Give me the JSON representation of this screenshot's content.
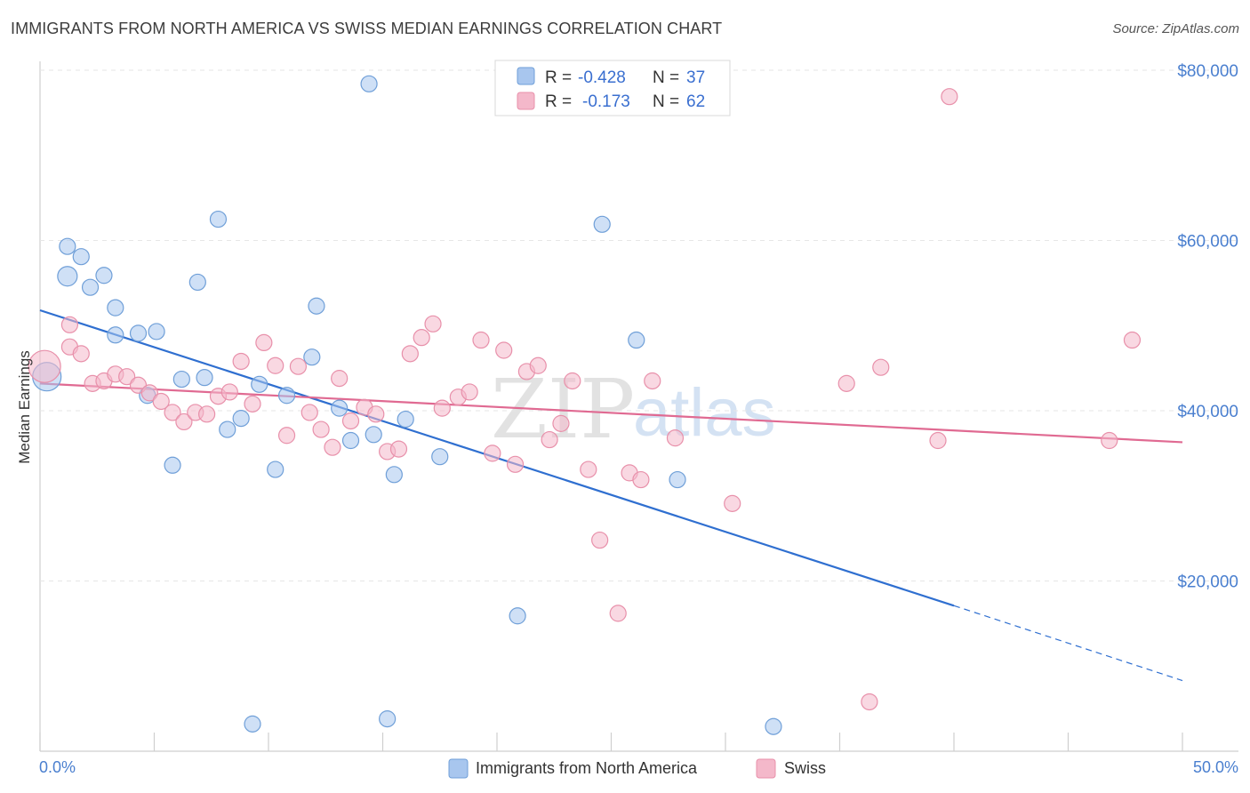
{
  "header": {
    "title": "IMMIGRANTS FROM NORTH AMERICA VS SWISS MEDIAN EARNINGS CORRELATION CHART",
    "source": "Source: ZipAtlas.com"
  },
  "watermark": {
    "zip": "ZIP",
    "atlas": "atlas"
  },
  "legend": {
    "r_label": "R =",
    "n_label": "N =",
    "rows": [
      {
        "r": "-0.428",
        "n": "37",
        "color": "#a8c6ee"
      },
      {
        "r": "-0.173",
        "n": "62",
        "color": "#f4b8ca"
      }
    ]
  },
  "bottom_legend": {
    "items": [
      {
        "label": "Immigrants from North America",
        "color": "#a8c6ee"
      },
      {
        "label": "Swiss",
        "color": "#f4b8ca"
      }
    ]
  },
  "chart_data": {
    "type": "scatter",
    "title": "IMMIGRANTS FROM NORTH AMERICA VS SWISS MEDIAN EARNINGS CORRELATION CHART",
    "xlabel": "",
    "ylabel": "Median Earnings",
    "xlim": [
      0,
      50
    ],
    "ylim": [
      0,
      80000
    ],
    "x_tick_labels": [
      "0.0%",
      "50.0%"
    ],
    "y_ticks": [
      20000,
      40000,
      60000,
      80000
    ],
    "y_tick_labels": [
      "$20,000",
      "$40,000",
      "$60,000",
      "$80,000"
    ],
    "grid": true,
    "series": [
      {
        "name": "Immigrants from North America",
        "color": "#a8c6ee",
        "stroke": "#6f9fd8",
        "trend_color": "#2f6fd0",
        "trend": {
          "x0": 0,
          "y0": 51800,
          "x1": 40,
          "y1": 17100,
          "dash_x1": 50,
          "dash_y1": 8300
        },
        "points": [
          [
            0.3,
            44000,
            16
          ],
          [
            1.2,
            55800,
            11
          ],
          [
            1.2,
            59300,
            9
          ],
          [
            1.8,
            58100,
            9
          ],
          [
            2.2,
            54500,
            9
          ],
          [
            2.8,
            55900,
            9
          ],
          [
            3.3,
            52100,
            9
          ],
          [
            3.3,
            48900,
            9
          ],
          [
            4.3,
            49100,
            9
          ],
          [
            5.1,
            49300,
            9
          ],
          [
            4.7,
            41800,
            9
          ],
          [
            6.2,
            43700,
            9
          ],
          [
            5.8,
            33600,
            9
          ],
          [
            6.9,
            55100,
            9
          ],
          [
            7.2,
            43900,
            9
          ],
          [
            7.8,
            62500,
            9
          ],
          [
            8.2,
            37800,
            9
          ],
          [
            8.8,
            39100,
            9
          ],
          [
            9.6,
            43100,
            9
          ],
          [
            10.3,
            33100,
            9
          ],
          [
            10.8,
            41800,
            9
          ],
          [
            11.9,
            46300,
            9
          ],
          [
            12.1,
            52300,
            9
          ],
          [
            13.1,
            40300,
            9
          ],
          [
            13.6,
            36500,
            9
          ],
          [
            14.6,
            37200,
            9
          ],
          [
            14.4,
            78400,
            9
          ],
          [
            16.0,
            39000,
            9
          ],
          [
            15.5,
            32500,
            9
          ],
          [
            17.5,
            34600,
            9
          ],
          [
            24.6,
            61900,
            9
          ],
          [
            26.1,
            48300,
            9
          ],
          [
            27.9,
            31900,
            9
          ],
          [
            20.9,
            15900,
            9
          ],
          [
            9.3,
            3200,
            9
          ],
          [
            15.2,
            3800,
            9
          ],
          [
            32.1,
            2900,
            9
          ]
        ]
      },
      {
        "name": "Swiss",
        "color": "#f4b8ca",
        "stroke": "#e890aa",
        "trend_color": "#e06a92",
        "trend": {
          "x0": 0,
          "y0": 43200,
          "x1": 50,
          "y1": 36300
        },
        "points": [
          [
            0.2,
            45200,
            18
          ],
          [
            1.3,
            50100,
            9
          ],
          [
            1.3,
            47500,
            9
          ],
          [
            1.8,
            46700,
            9
          ],
          [
            2.3,
            43200,
            9
          ],
          [
            2.8,
            43500,
            9
          ],
          [
            3.3,
            44300,
            9
          ],
          [
            3.8,
            44000,
            9
          ],
          [
            4.3,
            43000,
            9
          ],
          [
            4.8,
            42100,
            9
          ],
          [
            5.3,
            41100,
            9
          ],
          [
            5.8,
            39800,
            9
          ],
          [
            6.3,
            38700,
            9
          ],
          [
            6.8,
            39800,
            9
          ],
          [
            7.3,
            39600,
            9
          ],
          [
            7.8,
            41700,
            9
          ],
          [
            8.3,
            42200,
            9
          ],
          [
            8.8,
            45800,
            9
          ],
          [
            9.3,
            40800,
            9
          ],
          [
            9.8,
            48000,
            9
          ],
          [
            10.3,
            45300,
            9
          ],
          [
            10.8,
            37100,
            9
          ],
          [
            11.3,
            45200,
            9
          ],
          [
            11.8,
            39800,
            9
          ],
          [
            12.3,
            37800,
            9
          ],
          [
            12.8,
            35700,
            9
          ],
          [
            13.1,
            43800,
            9
          ],
          [
            13.6,
            38800,
            9
          ],
          [
            14.2,
            40400,
            9
          ],
          [
            14.7,
            39600,
            9
          ],
          [
            15.2,
            35200,
            9
          ],
          [
            15.7,
            35500,
            9
          ],
          [
            16.2,
            46700,
            9
          ],
          [
            16.7,
            48600,
            9
          ],
          [
            17.2,
            50200,
            9
          ],
          [
            17.6,
            40300,
            9
          ],
          [
            18.3,
            41600,
            9
          ],
          [
            18.8,
            42200,
            9
          ],
          [
            19.3,
            48300,
            9
          ],
          [
            19.8,
            35000,
            9
          ],
          [
            20.3,
            47100,
            9
          ],
          [
            20.8,
            33700,
            9
          ],
          [
            21.3,
            44600,
            9
          ],
          [
            21.8,
            45300,
            9
          ],
          [
            22.3,
            36600,
            9
          ],
          [
            22.8,
            38500,
            9
          ],
          [
            23.3,
            43500,
            9
          ],
          [
            24.0,
            33100,
            9
          ],
          [
            24.5,
            24800,
            9
          ],
          [
            25.3,
            16200,
            9
          ],
          [
            25.8,
            32700,
            9
          ],
          [
            26.3,
            31900,
            9
          ],
          [
            26.8,
            43500,
            9
          ],
          [
            27.8,
            36800,
            9
          ],
          [
            30.3,
            29100,
            9
          ],
          [
            35.3,
            43200,
            9
          ],
          [
            36.8,
            45100,
            9
          ],
          [
            39.3,
            36500,
            9
          ],
          [
            39.8,
            76900,
            9
          ],
          [
            46.8,
            36500,
            9
          ],
          [
            47.8,
            48300,
            9
          ],
          [
            36.3,
            5800,
            9
          ]
        ]
      }
    ]
  }
}
